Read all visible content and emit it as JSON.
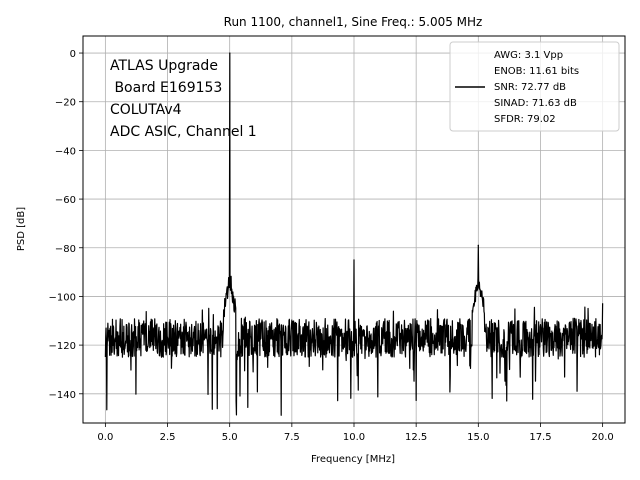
{
  "chart_data": {
    "type": "line",
    "title": "Run 1100, channel1, Sine Freq.: 5.005 MHz",
    "xlabel": "Frequency [MHz]",
    "ylabel": "PSD [dB]",
    "xlim": [
      -0.9,
      20.9
    ],
    "ylim": [
      -152,
      7
    ],
    "xticks": [
      0.0,
      2.5,
      5.0,
      7.5,
      10.0,
      12.5,
      15.0,
      17.5,
      20.0
    ],
    "xtick_labels": [
      "0.0",
      "2.5",
      "5.0",
      "7.5",
      "10.0",
      "12.5",
      "15.0",
      "17.5",
      "20.0"
    ],
    "yticks": [
      0,
      -20,
      -40,
      -60,
      -80,
      -100,
      -120,
      -140
    ],
    "ytick_labels": [
      "0",
      "−20",
      "−40",
      "−60",
      "−80",
      "−100",
      "−120",
      "−140"
    ],
    "grid": true,
    "line_color": "#000000",
    "noise_floor_db": -117,
    "noise_spread_db": 8,
    "peaks": [
      {
        "x": 5.005,
        "y": 0
      },
      {
        "x": 10.0,
        "y": -85
      },
      {
        "x": 15.0,
        "y": -79
      },
      {
        "x": 20.0,
        "y": -103
      }
    ],
    "annotation_lines": [
      "ATLAS Upgrade",
      " Board E169153",
      "COLUTAv4",
      "ADC ASIC, Channel 1"
    ],
    "legend_position": "upper right",
    "legend_lines": [
      "AWG: 3.1 Vpp",
      "ENOB: 11.61 bits",
      "SNR: 72.77 dB",
      "SINAD: 71.63 dB",
      "SFDR: 79.02"
    ]
  }
}
